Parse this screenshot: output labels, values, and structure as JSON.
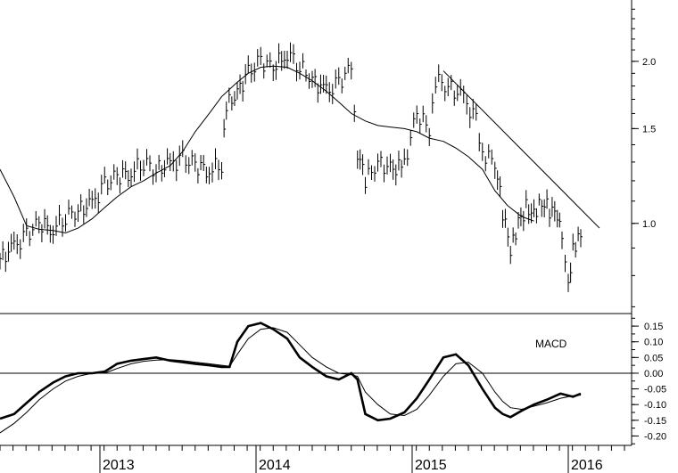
{
  "chart_data": [
    {
      "type": "line",
      "panel": "price",
      "title": "",
      "y_scale": "log",
      "ylim": [
        0.68,
        2.6
      ],
      "y_ticks": [
        {
          "value": 2.0,
          "label": "2.0"
        },
        {
          "value": 1.5,
          "label": "1.5"
        },
        {
          "value": 1.0,
          "label": "1.0"
        }
      ],
      "x_labels": [
        {
          "year": 2013,
          "label": "2013"
        },
        {
          "year": 2014,
          "label": "2014"
        },
        {
          "year": 2015,
          "label": "2015"
        },
        {
          "year": 2016,
          "label": "2016"
        }
      ],
      "series": [
        {
          "kind": "price-bars",
          "x": [
            2012.33,
            2012.42,
            2012.5,
            2012.58,
            2012.67,
            2012.75,
            2012.83,
            2012.92,
            2013.0,
            2013.08,
            2013.17,
            2013.25,
            2013.33,
            2013.42,
            2013.5,
            2013.58,
            2013.67,
            2013.75,
            2013.78,
            2013.85,
            2013.92,
            2014.0,
            2014.08,
            2014.17,
            2014.25,
            2014.33,
            2014.42,
            2014.5,
            2014.58,
            2014.62,
            2014.67,
            2014.75,
            2014.83,
            2014.92,
            2015.0,
            2015.08,
            2015.12,
            2015.2,
            2015.3,
            2015.38,
            2015.42,
            2015.5,
            2015.55,
            2015.6,
            2015.65,
            2015.7,
            2015.75,
            2015.8,
            2015.85,
            2015.9,
            2015.93,
            2015.97,
            2016.0,
            2016.05
          ],
          "y": [
            0.86,
            0.9,
            0.95,
            1.0,
            0.98,
            1.03,
            1.06,
            1.08,
            1.18,
            1.22,
            1.25,
            1.3,
            1.26,
            1.28,
            1.32,
            1.28,
            1.26,
            1.29,
            1.65,
            1.75,
            1.9,
            2.0,
            1.95,
            2.08,
            1.96,
            1.85,
            1.75,
            1.82,
            1.95,
            1.36,
            1.2,
            1.3,
            1.26,
            1.28,
            1.6,
            1.5,
            1.85,
            1.8,
            1.7,
            1.55,
            1.35,
            1.3,
            1.05,
            0.88,
            1.0,
            1.07,
            1.05,
            1.1,
            1.06,
            1.03,
            0.92,
            0.75,
            0.9,
            0.96
          ]
        },
        {
          "kind": "moving-average",
          "x": [
            2012.33,
            2012.42,
            2012.5,
            2012.58,
            2012.67,
            2012.75,
            2012.83,
            2012.92,
            2013.0,
            2013.08,
            2013.17,
            2013.25,
            2013.33,
            2013.42,
            2013.5,
            2013.58,
            2013.67,
            2013.75,
            2013.85,
            2013.92,
            2014.0,
            2014.08,
            2014.17,
            2014.25,
            2014.33,
            2014.42,
            2014.5,
            2014.58,
            2014.67,
            2014.75,
            2014.83,
            2014.92,
            2015.0,
            2015.08,
            2015.17,
            2015.25,
            2015.33,
            2015.42,
            2015.5,
            2015.58,
            2015.67,
            2015.75
          ],
          "y": [
            1.26,
            1.12,
            0.99,
            0.975,
            0.97,
            0.96,
            0.98,
            1.02,
            1.07,
            1.12,
            1.17,
            1.2,
            1.24,
            1.28,
            1.36,
            1.48,
            1.6,
            1.72,
            1.83,
            1.9,
            1.95,
            1.96,
            1.95,
            1.9,
            1.84,
            1.76,
            1.68,
            1.6,
            1.55,
            1.52,
            1.51,
            1.5,
            1.48,
            1.44,
            1.42,
            1.38,
            1.33,
            1.26,
            1.15,
            1.08,
            1.03,
            1.01
          ]
        },
        {
          "kind": "trendline",
          "x": [
            2015.17,
            2016.17
          ],
          "y": [
            1.92,
            0.98
          ]
        }
      ]
    },
    {
      "type": "line",
      "panel": "indicator",
      "title": "MACD",
      "ylim": [
        -0.23,
        0.19
      ],
      "y_ticks": [
        "0.15",
        "0.10",
        "0.05",
        "0.00",
        "-0.05",
        "-0.10",
        "-0.15",
        "-0.20"
      ],
      "zero_line": true,
      "series": [
        {
          "kind": "macd",
          "x": [
            2012.33,
            2012.42,
            2012.5,
            2012.58,
            2012.67,
            2012.75,
            2012.83,
            2012.92,
            2013.0,
            2013.08,
            2013.17,
            2013.25,
            2013.33,
            2013.42,
            2013.5,
            2013.58,
            2013.67,
            2013.75,
            2013.8,
            2013.85,
            2013.92,
            2014.0,
            2014.08,
            2014.17,
            2014.25,
            2014.33,
            2014.42,
            2014.5,
            2014.58,
            2014.62,
            2014.67,
            2014.75,
            2014.83,
            2014.92,
            2015.0,
            2015.08,
            2015.17,
            2015.25,
            2015.33,
            2015.42,
            2015.5,
            2015.55,
            2015.6,
            2015.67,
            2015.75,
            2015.83,
            2015.92,
            2016.0,
            2016.05
          ],
          "y": [
            -0.145,
            -0.13,
            -0.095,
            -0.06,
            -0.03,
            -0.01,
            0.0,
            0.0,
            0.005,
            0.03,
            0.04,
            0.045,
            0.05,
            0.04,
            0.035,
            0.03,
            0.025,
            0.02,
            0.02,
            0.1,
            0.15,
            0.16,
            0.14,
            0.11,
            0.05,
            0.02,
            -0.01,
            -0.02,
            0.0,
            -0.02,
            -0.13,
            -0.15,
            -0.145,
            -0.125,
            -0.08,
            -0.02,
            0.05,
            0.06,
            0.025,
            -0.05,
            -0.11,
            -0.13,
            -0.14,
            -0.12,
            -0.1,
            -0.085,
            -0.065,
            -0.075,
            -0.065
          ]
        },
        {
          "kind": "signal",
          "x": [
            2012.33,
            2012.42,
            2012.5,
            2012.58,
            2012.67,
            2012.75,
            2012.83,
            2012.92,
            2013.0,
            2013.08,
            2013.17,
            2013.25,
            2013.33,
            2013.42,
            2013.5,
            2013.58,
            2013.67,
            2013.75,
            2013.8,
            2013.85,
            2013.92,
            2014.0,
            2014.08,
            2014.17,
            2014.25,
            2014.33,
            2014.42,
            2014.5,
            2014.58,
            2014.62,
            2014.67,
            2014.75,
            2014.83,
            2014.92,
            2015.0,
            2015.08,
            2015.17,
            2015.25,
            2015.33,
            2015.42,
            2015.5,
            2015.55,
            2015.6,
            2015.67,
            2015.75,
            2015.83,
            2015.92,
            2016.0,
            2016.05
          ],
          "y": [
            -0.19,
            -0.16,
            -0.125,
            -0.085,
            -0.05,
            -0.025,
            -0.01,
            0.0,
            0.0,
            0.015,
            0.03,
            0.038,
            0.042,
            0.043,
            0.04,
            0.035,
            0.03,
            0.025,
            0.022,
            0.06,
            0.11,
            0.14,
            0.145,
            0.13,
            0.09,
            0.05,
            0.02,
            0.0,
            -0.005,
            -0.01,
            -0.06,
            -0.1,
            -0.13,
            -0.135,
            -0.115,
            -0.07,
            -0.01,
            0.03,
            0.035,
            0.0,
            -0.06,
            -0.09,
            -0.11,
            -0.115,
            -0.105,
            -0.095,
            -0.08,
            -0.072,
            -0.07
          ]
        }
      ]
    }
  ]
}
